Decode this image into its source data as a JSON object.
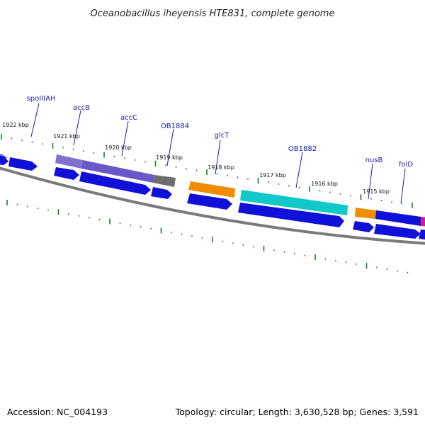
{
  "title": "Oceanobacillus iheyensis HTE831, complete genome",
  "footer": {
    "accession": "Accession: NC_004193",
    "topology": "Topology: circular; Length: 3,630,528 bp; Genes: 3,591"
  },
  "colors": {
    "backbone": "#7a7a7a",
    "tick": "#1e7a1e",
    "cds": "#1010d8",
    "accB": "#8070d0",
    "accC": "#6a58c8",
    "OB1884": "#6e6e6e",
    "glcT": "#f08c00",
    "OB1882": "#10c8c8",
    "nusB": "#f08c00",
    "folD": "#1010d8",
    "edge_feature": "#e01890",
    "label": "#1a1aa6"
  },
  "gene_labels": [
    {
      "name": "spoIIIAH",
      "icon": "label-callout"
    },
    {
      "name": "accB",
      "icon": "label-callout"
    },
    {
      "name": "accC",
      "icon": "label-callout"
    },
    {
      "name": "OB1884",
      "icon": "label-callout"
    },
    {
      "name": "glcT",
      "icon": "label-callout"
    },
    {
      "name": "OB1882",
      "icon": "label-callout"
    },
    {
      "name": "nusB",
      "icon": "label-callout"
    },
    {
      "name": "folD",
      "icon": "label-callout"
    }
  ],
  "kbp_labels": [
    "1922 kbp",
    "1921 kbp",
    "1920 kbp",
    "1919 kbp",
    "1918 kbp",
    "1917 kbp",
    "1916 kbp",
    "1915 kbp"
  ]
}
